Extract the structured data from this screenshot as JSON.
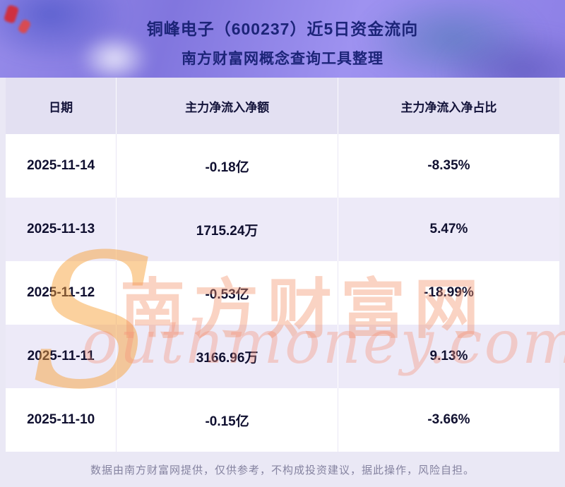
{
  "banner": {
    "title": "铜峰电子（600237）近5日资金流向",
    "subtitle": "南方财富网概念查询工具整理"
  },
  "table": {
    "headers": [
      "日期",
      "主力净流入净额",
      "主力净流入净占比"
    ],
    "rows": [
      {
        "date": "2025-11-14",
        "amount": "-0.18亿",
        "ratio": "-8.35%"
      },
      {
        "date": "2025-11-13",
        "amount": "1715.24万",
        "ratio": "5.47%"
      },
      {
        "date": "2025-11-12",
        "amount": "-0.53亿",
        "ratio": "-18.99%"
      },
      {
        "date": "2025-11-11",
        "amount": "3166.96万",
        "ratio": "9.13%"
      },
      {
        "date": "2025-11-10",
        "amount": "-0.15亿",
        "ratio": "-3.66%"
      }
    ]
  },
  "chart_data": {
    "type": "table",
    "title": "铜峰电子（600237）近5日资金流向",
    "subtitle": "南方财富网概念查询工具整理",
    "columns": [
      "日期",
      "主力净流入净额",
      "主力净流入净占比"
    ],
    "rows": [
      [
        "2025-11-14",
        "-0.18亿",
        "-8.35%"
      ],
      [
        "2025-11-13",
        "1715.24万",
        "5.47%"
      ],
      [
        "2025-11-12",
        "-0.53亿",
        "-18.99%"
      ],
      [
        "2025-11-11",
        "3166.96万",
        "9.13%"
      ],
      [
        "2025-11-10",
        "-0.15亿",
        "-3.66%"
      ]
    ],
    "series": [
      {
        "name": "主力净流入净额(亿)",
        "values": [
          -0.18,
          0.171524,
          -0.53,
          0.316696,
          -0.15
        ]
      },
      {
        "name": "主力净流入净占比(%)",
        "values": [
          -8.35,
          5.47,
          -18.99,
          9.13,
          -3.66
        ]
      }
    ],
    "x": [
      "2025-11-14",
      "2025-11-13",
      "2025-11-12",
      "2025-11-11",
      "2025-11-10"
    ]
  },
  "watermark": {
    "initial": "S",
    "cn": "南方财富网",
    "en": "outhmoney.com"
  },
  "footer": {
    "disclaimer": "数据由南方财富网提供，仅供参考，不构成投资建议，据此操作，风险自担。"
  },
  "colors": {
    "title": "#1c2478",
    "header_bg": "#e3e0f2",
    "row_alt": "#edeaf8",
    "banner_purple": "#8d80e6",
    "watermark_orange": "#f59e63"
  }
}
